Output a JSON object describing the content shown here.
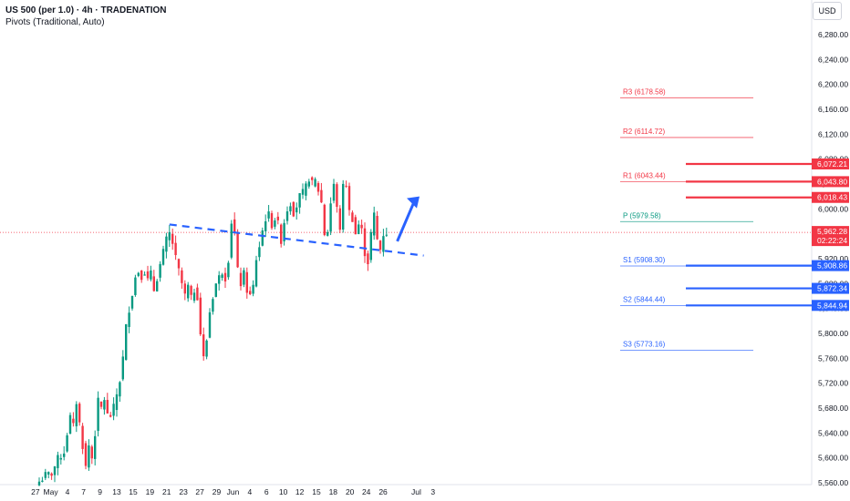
{
  "header": {
    "title": "US 500 (per 1.0) · 4h · TRADENATION",
    "indicator": "Pivots (Traditional, Auto)",
    "currency": "USD"
  },
  "colors": {
    "up": "#089981",
    "down": "#f23645",
    "bg": "#ffffff",
    "resistance": "#f23645",
    "support": "#2962ff",
    "trend": "#2962ff",
    "pivot": "#089981"
  },
  "chart_data": {
    "type": "candlestick",
    "symbol": "US 500",
    "interval": "4h",
    "ylim": [
      5560,
      6300
    ],
    "y_ticks": [
      "5,560.00",
      "5,600.00",
      "5,640.00",
      "5,680.00",
      "5,720.00",
      "5,760.00",
      "5,800.00",
      "5,840.00",
      "5,880.00",
      "5,920.00",
      "5,960.00",
      "6,000.00",
      "6,040.00",
      "6,080.00",
      "6,120.00",
      "6,160.00",
      "6,200.00",
      "6,240.00",
      "6,280.00"
    ],
    "y_tick_values": [
      5560,
      5600,
      5640,
      5680,
      5720,
      5760,
      5800,
      5840,
      5880,
      5920,
      5960,
      6000,
      6040,
      6080,
      6120,
      6160,
      6200,
      6240,
      6280
    ],
    "x_ticks": [
      {
        "label": "27",
        "t": -1.2
      },
      {
        "label": "May",
        "t": 3.7
      },
      {
        "label": "4",
        "t": 9.1
      },
      {
        "label": "7",
        "t": 14.3
      },
      {
        "label": "9",
        "t": 19.6
      },
      {
        "label": "13",
        "t": 25
      },
      {
        "label": "15",
        "t": 30.3
      },
      {
        "label": "19",
        "t": 35.7
      },
      {
        "label": "21",
        "t": 41.1
      },
      {
        "label": "23",
        "t": 46.5
      },
      {
        "label": "27",
        "t": 51.8
      },
      {
        "label": "29",
        "t": 57.2
      },
      {
        "label": "Jun",
        "t": 62.5
      },
      {
        "label": "4",
        "t": 67.9
      },
      {
        "label": "6",
        "t": 73.3
      },
      {
        "label": "10",
        "t": 78.7
      },
      {
        "label": "12",
        "t": 84
      },
      {
        "label": "15",
        "t": 89.4
      },
      {
        "label": "18",
        "t": 94.8
      },
      {
        "label": "20",
        "t": 100.2
      },
      {
        "label": "24",
        "t": 105.5
      },
      {
        "label": "26",
        "t": 110.9
      },
      {
        "label": "Jul",
        "t": 121.6
      },
      {
        "label": "3",
        "t": 127
      }
    ],
    "anchors": [
      [
        0,
        5562
      ],
      [
        2,
        5572
      ],
      [
        4,
        5575
      ],
      [
        6,
        5598
      ],
      [
        8,
        5610
      ],
      [
        9,
        5640
      ],
      [
        10,
        5665
      ],
      [
        11,
        5650
      ],
      [
        12,
        5690
      ],
      [
        13,
        5655
      ],
      [
        14,
        5620
      ],
      [
        15,
        5585
      ],
      [
        16,
        5620
      ],
      [
        17,
        5600
      ],
      [
        18,
        5640
      ],
      [
        19,
        5690
      ],
      [
        20,
        5680
      ],
      [
        21,
        5695
      ],
      [
        22,
        5668
      ],
      [
        23,
        5668
      ],
      [
        24,
        5680
      ],
      [
        26,
        5725
      ],
      [
        27,
        5760
      ],
      [
        28,
        5810
      ],
      [
        29,
        5840
      ],
      [
        30,
        5865
      ],
      [
        31,
        5890
      ],
      [
        32,
        5900
      ],
      [
        33,
        5893
      ],
      [
        34,
        5900
      ],
      [
        35,
        5885
      ],
      [
        36,
        5895
      ],
      [
        37,
        5870
      ],
      [
        38,
        5890
      ],
      [
        39,
        5910
      ],
      [
        40,
        5930
      ],
      [
        41,
        5950
      ],
      [
        42,
        5960
      ],
      [
        43,
        5945
      ],
      [
        44,
        5920
      ],
      [
        45,
        5900
      ],
      [
        46,
        5880
      ],
      [
        47,
        5860
      ],
      [
        48,
        5875
      ],
      [
        49,
        5855
      ],
      [
        50,
        5870
      ],
      [
        51,
        5860
      ],
      [
        52,
        5800
      ],
      [
        53,
        5760
      ],
      [
        54,
        5790
      ],
      [
        55,
        5835
      ],
      [
        56,
        5860
      ],
      [
        57,
        5880
      ],
      [
        58,
        5890
      ],
      [
        59,
        5900
      ],
      [
        60,
        5890
      ],
      [
        61,
        5920
      ],
      [
        62,
        5980
      ],
      [
        63,
        5960
      ],
      [
        64,
        5900
      ],
      [
        65,
        5880
      ],
      [
        66,
        5895
      ],
      [
        67,
        5870
      ],
      [
        68,
        5860
      ],
      [
        69,
        5875
      ],
      [
        70,
        5920
      ],
      [
        71,
        5940
      ],
      [
        72,
        5965
      ],
      [
        73,
        5985
      ],
      [
        74,
        5990
      ],
      [
        75,
        5975
      ],
      [
        76,
        5985
      ],
      [
        77,
        5975
      ],
      [
        78,
        5950
      ],
      [
        79,
        5980
      ],
      [
        80,
        6000
      ],
      [
        81,
        6010
      ],
      [
        82,
        5995
      ],
      [
        83,
        6005
      ],
      [
        84,
        6020
      ],
      [
        85,
        6025
      ],
      [
        86,
        6035
      ],
      [
        87,
        6050
      ],
      [
        88,
        6040
      ],
      [
        89,
        6045
      ],
      [
        90,
        6030
      ],
      [
        91,
        6010
      ],
      [
        92,
        5960
      ],
      [
        93,
        5965
      ],
      [
        94,
        6010
      ],
      [
        95,
        6040
      ],
      [
        96,
        6000
      ],
      [
        97,
        5970
      ],
      [
        98,
        6035
      ],
      [
        99,
        6040
      ],
      [
        100,
        5995
      ],
      [
        101,
        5985
      ],
      [
        102,
        5960
      ],
      [
        103,
        5975
      ],
      [
        104,
        5965
      ],
      [
        105,
        5930
      ],
      [
        106,
        5915
      ],
      [
        107,
        5960
      ],
      [
        108,
        5990
      ],
      [
        109,
        5950
      ],
      [
        110,
        5935
      ],
      [
        111,
        5960
      ],
      [
        112,
        5962
      ]
    ],
    "current_price": "5,962.28",
    "countdown": "02:22:24",
    "pivots": {
      "R3": {
        "label": "R3 (6178.58)",
        "value": 6178.58
      },
      "R2": {
        "label": "R2 (6114.72)",
        "value": 6114.72
      },
      "R1": {
        "label": "R1 (6043.44)",
        "value": 6043.44
      },
      "P": {
        "label": "P (5979.58)",
        "value": 5979.58
      },
      "S1": {
        "label": "S1 (5908.30)",
        "value": 5908.3
      },
      "S2": {
        "label": "S2 (5844.44)",
        "value": 5844.44
      },
      "S3": {
        "label": "S3 (5773.16)",
        "value": 5773.16
      }
    },
    "resistance_levels": [
      {
        "value": 6072.21,
        "label": "6,072.21"
      },
      {
        "value": 6043.8,
        "label": "6,043.80"
      },
      {
        "value": 6018.43,
        "label": "6,018.43"
      }
    ],
    "support_levels": [
      {
        "value": 5908.86,
        "label": "5,908.86"
      },
      {
        "value": 5872.34,
        "label": "5,872.34"
      },
      {
        "value": 5844.94,
        "label": "5,844.94"
      }
    ],
    "trendline": {
      "from": [
        42,
        5975
      ],
      "to": [
        124,
        5925
      ]
    },
    "projection_arrow": {
      "from": [
        109,
        5948
      ],
      "to": [
        115,
        6020
      ]
    }
  }
}
